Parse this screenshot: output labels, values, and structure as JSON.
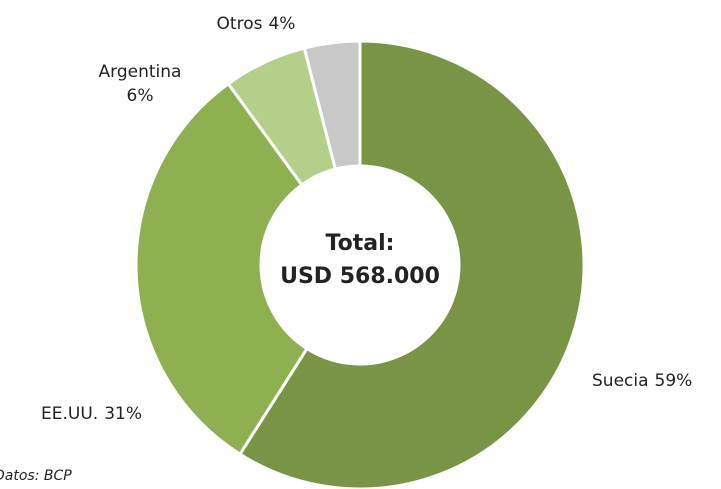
{
  "chart_data": {
    "type": "pie",
    "categories": [
      "Suecia",
      "EE.UU.",
      "Argentina",
      "Otros"
    ],
    "values": [
      59,
      31,
      6,
      4
    ],
    "value_labels": [
      "59%",
      "31%",
      "6%",
      "4%"
    ],
    "colors": [
      "#7a9445",
      "#8fb050",
      "#b3cf8a",
      "#c8c8c8"
    ],
    "center_text": [
      "Total:",
      "USD 568.000"
    ],
    "source": "Datos: BCP"
  }
}
